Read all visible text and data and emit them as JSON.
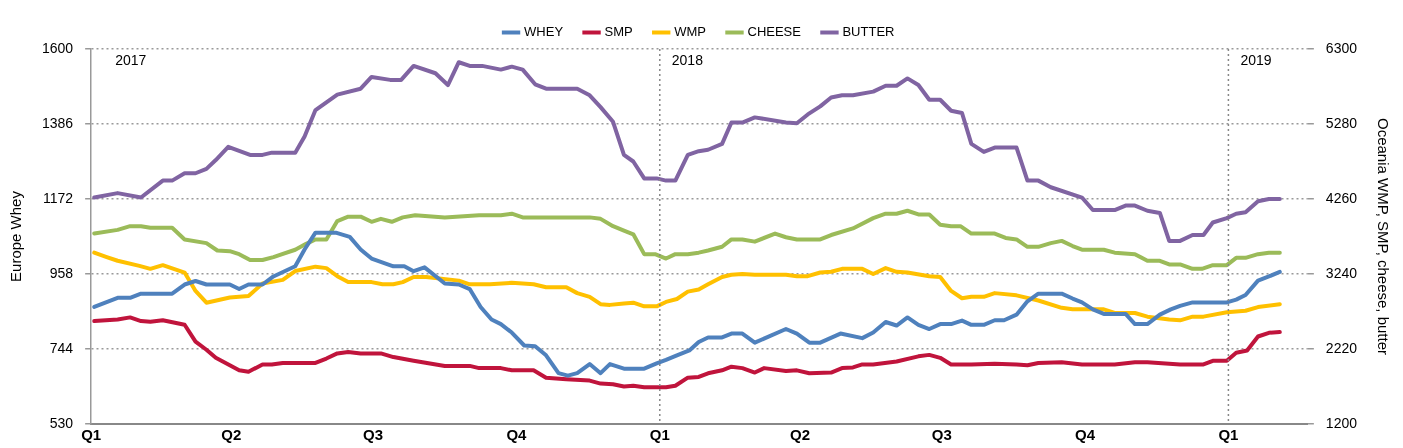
{
  "chart_data": {
    "type": "line",
    "ylabel": "Europe Whey",
    "y2label": "Oceania WMP, SMP, cheese, butter",
    "xlim": [
      "2017-01-01",
      "2019-02-21"
    ],
    "xticks": [
      {
        "value": "2017-01-01",
        "label": "Q1"
      },
      {
        "value": "2017-04-01",
        "label": "Q2"
      },
      {
        "value": "2017-07-01",
        "label": "Q3"
      },
      {
        "value": "2017-10-01",
        "label": "Q4"
      },
      {
        "value": "2018-01-01",
        "label": "Q1"
      },
      {
        "value": "2018-04-01",
        "label": "Q2"
      },
      {
        "value": "2018-07-01",
        "label": "Q3"
      },
      {
        "value": "2018-10-01",
        "label": "Q4"
      },
      {
        "value": "2019-01-01",
        "label": "Q1"
      }
    ],
    "ylim": [
      530,
      1600
    ],
    "yticks": [
      530,
      744,
      958,
      1172,
      1386,
      1600
    ],
    "y2lim": [
      1200,
      6300
    ],
    "y2ticks": [
      1200,
      2220,
      3240,
      4260,
      5280,
      6300
    ],
    "grid": "y",
    "legend": "top",
    "marker": "none",
    "line_style": "solid",
    "annotations": [
      "2017"
    ],
    "ref_lines": [
      {
        "axis": "x",
        "value": "2018-01-01",
        "label": "2018"
      },
      {
        "axis": "x",
        "value": "2019-01-01",
        "label": "2019"
      }
    ],
    "series": [
      {
        "name": "WHEY",
        "color": "#4f81bd",
        "x": [
          "2017-01-03",
          "2017-01-18",
          "2017-01-26",
          "2017-02-02",
          "2017-02-22",
          "2017-03-02",
          "2017-03-09",
          "2017-03-16",
          "2017-03-31",
          "2017-04-06",
          "2017-04-12",
          "2017-04-21",
          "2017-04-28",
          "2017-05-12",
          "2017-05-18",
          "2017-05-25",
          "2017-06-07",
          "2017-06-16",
          "2017-06-23",
          "2017-06-30",
          "2017-07-14",
          "2017-07-21",
          "2017-07-27",
          "2017-08-03",
          "2017-08-16",
          "2017-08-25",
          "2017-09-01",
          "2017-09-08",
          "2017-09-15",
          "2017-09-21",
          "2017-09-28",
          "2017-10-06",
          "2017-10-13",
          "2017-10-20",
          "2017-10-28",
          "2017-11-03",
          "2017-11-09",
          "2017-11-17",
          "2017-11-24",
          "2017-11-30",
          "2017-12-09",
          "2017-12-22",
          "2017-12-30",
          "2018-01-05",
          "2018-01-12",
          "2018-01-20",
          "2018-01-26",
          "2018-02-01",
          "2018-02-10",
          "2018-02-16",
          "2018-02-23",
          "2018-03-03",
          "2018-03-23",
          "2018-03-30",
          "2018-04-07",
          "2018-04-14",
          "2018-04-27",
          "2018-05-11",
          "2018-05-18",
          "2018-05-26",
          "2018-06-02",
          "2018-06-09",
          "2018-06-16",
          "2018-06-23",
          "2018-06-30",
          "2018-07-07",
          "2018-07-14",
          "2018-07-20",
          "2018-07-28",
          "2018-08-04",
          "2018-08-10",
          "2018-08-18",
          "2018-08-25",
          "2018-09-01",
          "2018-09-16",
          "2018-09-23",
          "2018-09-29",
          "2018-10-06",
          "2018-10-13",
          "2018-10-27",
          "2018-11-02",
          "2018-11-10",
          "2018-11-18",
          "2018-11-25",
          "2018-12-01",
          "2018-12-09",
          "2018-12-31",
          "2019-01-06",
          "2019-01-12",
          "2019-01-20",
          "2019-01-27",
          "2019-02-03"
        ],
        "values": [
          864,
          890,
          890,
          902,
          902,
          928,
          938,
          928,
          928,
          915,
          928,
          928,
          951,
          980,
          1028,
          1076,
          1076,
          1064,
          1028,
          1002,
          980,
          980,
          966,
          977,
          931,
          928,
          915,
          864,
          828,
          815,
          791,
          754,
          752,
          726,
          675,
          668,
          675,
          701,
          675,
          701,
          688,
          688,
          703,
          713,
          726,
          740,
          764,
          777,
          777,
          788,
          788,
          762,
          801,
          788,
          762,
          762,
          788,
          775,
          791,
          821,
          811,
          834,
          813,
          801,
          815,
          815,
          825,
          813,
          813,
          826,
          826,
          842,
          880,
          902,
          902,
          888,
          877,
          857,
          844,
          844,
          815,
          815,
          842,
          857,
          867,
          877,
          877,
          885,
          898,
          939,
          951,
          964
        ]
      },
      {
        "name": "SMP",
        "color": "#c0143c",
        "axis": "y2",
        "x": [
          "2017-01-03",
          "2017-01-18",
          "2017-01-26",
          "2017-02-02",
          "2017-02-08",
          "2017-02-16",
          "2017-03-02",
          "2017-03-09",
          "2017-03-16",
          "2017-03-22",
          "2017-04-06",
          "2017-04-12",
          "2017-04-21",
          "2017-04-27",
          "2017-05-04",
          "2017-05-25",
          "2017-06-01",
          "2017-06-08",
          "2017-06-15",
          "2017-06-23",
          "2017-07-06",
          "2017-07-14",
          "2017-07-27",
          "2017-08-16",
          "2017-09-01",
          "2017-09-07",
          "2017-09-21",
          "2017-09-28",
          "2017-10-12",
          "2017-10-20",
          "2017-11-02",
          "2017-11-17",
          "2017-11-24",
          "2017-12-02",
          "2017-12-09",
          "2017-12-15",
          "2017-12-22",
          "2018-01-05",
          "2018-01-11",
          "2018-01-19",
          "2018-01-26",
          "2018-02-01",
          "2018-02-10",
          "2018-02-16",
          "2018-02-23",
          "2018-03-03",
          "2018-03-09",
          "2018-03-23",
          "2018-03-30",
          "2018-04-07",
          "2018-04-21",
          "2018-04-28",
          "2018-05-05",
          "2018-05-11",
          "2018-05-18",
          "2018-06-02",
          "2018-06-16",
          "2018-06-23",
          "2018-06-30",
          "2018-07-07",
          "2018-07-20",
          "2018-08-04",
          "2018-08-18",
          "2018-08-25",
          "2018-09-01",
          "2018-09-16",
          "2018-09-29",
          "2018-10-20",
          "2018-11-02",
          "2018-11-10",
          "2018-12-01",
          "2018-12-16",
          "2018-12-22",
          "2018-12-31",
          "2019-01-06",
          "2019-01-13",
          "2019-01-20",
          "2019-01-27",
          "2019-02-03"
        ],
        "values": [
          2600,
          2620,
          2650,
          2600,
          2590,
          2610,
          2550,
          2320,
          2210,
          2100,
          1930,
          1910,
          2010,
          2010,
          2030,
          2030,
          2090,
          2160,
          2180,
          2160,
          2160,
          2110,
          2060,
          1990,
          1990,
          1960,
          1960,
          1930,
          1930,
          1830,
          1810,
          1790,
          1750,
          1740,
          1710,
          1720,
          1700,
          1700,
          1720,
          1830,
          1840,
          1890,
          1930,
          1980,
          1960,
          1900,
          1960,
          1920,
          1930,
          1890,
          1900,
          1960,
          1970,
          2010,
          2010,
          2050,
          2120,
          2140,
          2100,
          2010,
          2010,
          2020,
          2010,
          2000,
          2030,
          2040,
          2010,
          2010,
          2040,
          2040,
          2010,
          2010,
          2060,
          2060,
          2170,
          2200,
          2390,
          2440,
          2450
        ]
      },
      {
        "name": "WMP",
        "color": "#ffc000",
        "axis": "y2",
        "x": [
          "2017-01-03",
          "2017-01-11",
          "2017-01-18",
          "2017-02-01",
          "2017-02-08",
          "2017-02-16",
          "2017-03-02",
          "2017-03-09",
          "2017-03-16",
          "2017-03-31",
          "2017-04-12",
          "2017-04-21",
          "2017-05-04",
          "2017-05-12",
          "2017-05-25",
          "2017-06-01",
          "2017-06-08",
          "2017-06-15",
          "2017-06-30",
          "2017-07-07",
          "2017-07-14",
          "2017-07-20",
          "2017-07-27",
          "2017-08-04",
          "2017-08-25",
          "2017-09-01",
          "2017-09-14",
          "2017-09-28",
          "2017-10-12",
          "2017-10-20",
          "2017-11-02",
          "2017-11-09",
          "2017-11-17",
          "2017-11-24",
          "2017-11-30",
          "2017-12-09",
          "2017-12-15",
          "2017-12-22",
          "2017-12-30",
          "2018-01-05",
          "2018-01-12",
          "2018-01-19",
          "2018-01-26",
          "2018-02-01",
          "2018-02-10",
          "2018-02-16",
          "2018-02-23",
          "2018-03-03",
          "2018-03-23",
          "2018-03-30",
          "2018-04-06",
          "2018-04-14",
          "2018-04-21",
          "2018-04-28",
          "2018-05-11",
          "2018-05-18",
          "2018-05-26",
          "2018-06-02",
          "2018-06-09",
          "2018-06-23",
          "2018-06-30",
          "2018-07-07",
          "2018-07-14",
          "2018-07-20",
          "2018-07-28",
          "2018-08-04",
          "2018-08-18",
          "2018-09-01",
          "2018-09-16",
          "2018-09-23",
          "2018-10-13",
          "2018-10-20",
          "2018-11-02",
          "2018-11-10",
          "2018-11-24",
          "2018-12-01",
          "2018-12-09",
          "2018-12-16",
          "2018-12-31",
          "2019-01-12",
          "2019-01-20",
          "2019-02-03"
        ],
        "values": [
          3530,
          3470,
          3420,
          3350,
          3310,
          3360,
          3260,
          3010,
          2850,
          2920,
          2940,
          3110,
          3160,
          3280,
          3340,
          3320,
          3210,
          3130,
          3130,
          3100,
          3100,
          3130,
          3200,
          3200,
          3150,
          3100,
          3100,
          3120,
          3100,
          3060,
          3060,
          2980,
          2930,
          2830,
          2820,
          2840,
          2850,
          2800,
          2800,
          2860,
          2900,
          3000,
          3030,
          3100,
          3200,
          3230,
          3240,
          3230,
          3230,
          3210,
          3210,
          3260,
          3270,
          3310,
          3310,
          3240,
          3320,
          3270,
          3260,
          3210,
          3200,
          3010,
          2910,
          2930,
          2930,
          2980,
          2950,
          2880,
          2780,
          2760,
          2760,
          2710,
          2710,
          2660,
          2620,
          2610,
          2660,
          2660,
          2720,
          2740,
          2790,
          2830
        ]
      },
      {
        "name": "CHEESE",
        "color": "#9bbb59",
        "axis": "y2",
        "x": [
          "2017-01-03",
          "2017-01-18",
          "2017-01-26",
          "2017-02-02",
          "2017-02-08",
          "2017-02-22",
          "2017-03-02",
          "2017-03-16",
          "2017-03-23",
          "2017-03-31",
          "2017-04-06",
          "2017-04-13",
          "2017-04-21",
          "2017-04-28",
          "2017-05-12",
          "2017-05-19",
          "2017-05-25",
          "2017-06-01",
          "2017-06-08",
          "2017-06-15",
          "2017-06-23",
          "2017-06-30",
          "2017-07-06",
          "2017-07-13",
          "2017-07-20",
          "2017-07-28",
          "2017-08-16",
          "2017-09-07",
          "2017-09-21",
          "2017-09-28",
          "2017-10-05",
          "2017-11-02",
          "2017-11-17",
          "2017-11-24",
          "2017-12-02",
          "2017-12-09",
          "2017-12-15",
          "2017-12-22",
          "2017-12-29",
          "2018-01-05",
          "2018-01-11",
          "2018-01-19",
          "2018-01-26",
          "2018-02-01",
          "2018-02-10",
          "2018-02-16",
          "2018-02-23",
          "2018-03-03",
          "2018-03-16",
          "2018-03-23",
          "2018-03-30",
          "2018-04-14",
          "2018-04-21",
          "2018-05-05",
          "2018-05-18",
          "2018-05-26",
          "2018-06-02",
          "2018-06-09",
          "2018-06-16",
          "2018-06-23",
          "2018-06-30",
          "2018-07-07",
          "2018-07-13",
          "2018-07-20",
          "2018-08-04",
          "2018-08-11",
          "2018-08-18",
          "2018-08-25",
          "2018-09-01",
          "2018-09-09",
          "2018-09-16",
          "2018-09-23",
          "2018-09-29",
          "2018-10-13",
          "2018-10-20",
          "2018-11-02",
          "2018-11-10",
          "2018-11-18",
          "2018-11-24",
          "2018-12-01",
          "2018-12-09",
          "2018-12-15",
          "2018-12-22",
          "2018-12-31",
          "2019-01-06",
          "2019-01-12",
          "2019-01-20",
          "2019-01-27",
          "2019-02-03"
        ],
        "values": [
          3790,
          3840,
          3890,
          3890,
          3870,
          3870,
          3710,
          3660,
          3560,
          3550,
          3510,
          3430,
          3430,
          3470,
          3570,
          3650,
          3710,
          3710,
          3960,
          4020,
          4020,
          3950,
          3990,
          3950,
          4010,
          4040,
          4010,
          4040,
          4040,
          4060,
          4010,
          4010,
          4010,
          3990,
          3890,
          3830,
          3780,
          3510,
          3510,
          3450,
          3510,
          3510,
          3530,
          3560,
          3610,
          3710,
          3710,
          3680,
          3790,
          3740,
          3710,
          3710,
          3770,
          3860,
          4000,
          4060,
          4060,
          4100,
          4050,
          4050,
          3910,
          3890,
          3890,
          3790,
          3790,
          3730,
          3710,
          3610,
          3610,
          3660,
          3690,
          3620,
          3570,
          3570,
          3530,
          3510,
          3420,
          3420,
          3370,
          3370,
          3310,
          3310,
          3360,
          3360,
          3460,
          3460,
          3510,
          3530,
          3530
        ]
      },
      {
        "name": "BUTTER",
        "color": "#8064a2",
        "axis": "y2",
        "x": [
          "2017-01-03",
          "2017-01-18",
          "2017-02-02",
          "2017-02-16",
          "2017-02-22",
          "2017-03-02",
          "2017-03-09",
          "2017-03-16",
          "2017-03-22",
          "2017-03-30",
          "2017-04-13",
          "2017-04-21",
          "2017-04-27",
          "2017-05-12",
          "2017-05-18",
          "2017-05-25",
          "2017-06-08",
          "2017-06-23",
          "2017-06-30",
          "2017-07-12",
          "2017-07-19",
          "2017-07-27",
          "2017-08-10",
          "2017-08-18",
          "2017-08-25",
          "2017-09-01",
          "2017-09-09",
          "2017-09-21",
          "2017-09-28",
          "2017-10-05",
          "2017-10-13",
          "2017-10-20",
          "2017-11-02",
          "2017-11-09",
          "2017-11-17",
          "2017-11-24",
          "2017-12-02",
          "2017-12-09",
          "2017-12-15",
          "2017-12-22",
          "2017-12-30",
          "2018-01-05",
          "2018-01-11",
          "2018-01-19",
          "2018-01-26",
          "2018-02-01",
          "2018-02-10",
          "2018-02-16",
          "2018-02-23",
          "2018-03-03",
          "2018-03-23",
          "2018-03-30",
          "2018-04-06",
          "2018-04-14",
          "2018-04-21",
          "2018-04-28",
          "2018-05-05",
          "2018-05-18",
          "2018-05-26",
          "2018-06-02",
          "2018-06-09",
          "2018-06-16",
          "2018-06-23",
          "2018-06-30",
          "2018-07-07",
          "2018-07-14",
          "2018-07-20",
          "2018-07-28",
          "2018-08-04",
          "2018-08-18",
          "2018-08-25",
          "2018-09-01",
          "2018-09-09",
          "2018-09-29",
          "2018-10-06",
          "2018-10-20",
          "2018-10-27",
          "2018-11-02",
          "2018-11-10",
          "2018-11-18",
          "2018-11-24",
          "2018-12-01",
          "2018-12-09",
          "2018-12-16",
          "2018-12-22",
          "2018-12-31",
          "2019-01-06",
          "2019-01-12",
          "2019-01-20",
          "2019-01-27",
          "2019-02-03"
        ],
        "values": [
          4280,
          4340,
          4280,
          4510,
          4510,
          4610,
          4610,
          4670,
          4790,
          4970,
          4860,
          4860,
          4890,
          4890,
          5110,
          5470,
          5680,
          5760,
          5920,
          5880,
          5880,
          6070,
          5970,
          5810,
          6120,
          6070,
          6070,
          6020,
          6060,
          6020,
          5820,
          5760,
          5760,
          5760,
          5670,
          5510,
          5310,
          4860,
          4770,
          4540,
          4540,
          4510,
          4510,
          4860,
          4910,
          4930,
          5010,
          5300,
          5300,
          5370,
          5300,
          5290,
          5410,
          5520,
          5640,
          5670,
          5670,
          5720,
          5800,
          5800,
          5900,
          5810,
          5610,
          5610,
          5460,
          5430,
          5010,
          4900,
          4960,
          4960,
          4510,
          4510,
          4420,
          4280,
          4110,
          4110,
          4170,
          4170,
          4100,
          4070,
          3690,
          3690,
          3770,
          3770,
          3940,
          4000,
          4060,
          4080,
          4230,
          4260,
          4260
        ]
      }
    ]
  }
}
